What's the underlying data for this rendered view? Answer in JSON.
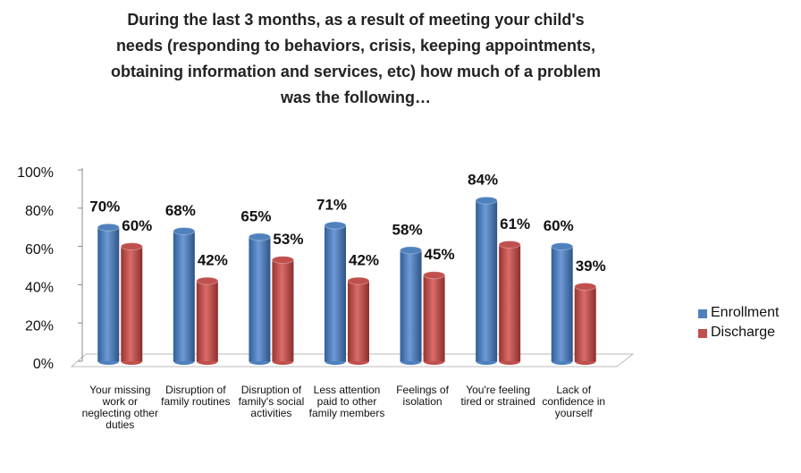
{
  "chart_data": {
    "type": "bar",
    "title": "During the last 3 months, as a result of meeting your child's needs (responding to behaviors, crisis, keeping appointments, obtaining information and services, etc) how much of a problem was the following…",
    "categories": [
      "Your missing work or neglecting other duties",
      "Disruption of family routines",
      "Disruption of family's social activities",
      "Less attention paid to other family members",
      "Feelings of isolation",
      "You're feeling tired or strained",
      "Lack of confidence in yourself"
    ],
    "series": [
      {
        "name": "Enrollment",
        "color": "#4f81bd",
        "values": [
          70,
          68,
          65,
          71,
          58,
          84,
          60
        ],
        "value_labels": [
          "70%",
          "68%",
          "65%",
          "71%",
          "58%",
          "84%",
          "60%"
        ]
      },
      {
        "name": "Discharge",
        "color": "#c0504d",
        "values": [
          60,
          42,
          53,
          42,
          45,
          61,
          39
        ],
        "value_labels": [
          "60%",
          "42%",
          "53%",
          "42%",
          "45%",
          "61%",
          "39%"
        ]
      }
    ],
    "ylim": [
      0,
      100
    ],
    "yticks": [
      {
        "value": 0,
        "label": "0%"
      },
      {
        "value": 20,
        "label": "20%"
      },
      {
        "value": 40,
        "label": "40%"
      },
      {
        "value": 60,
        "label": "60%"
      },
      {
        "value": 80,
        "label": "80%"
      },
      {
        "value": 100,
        "label": "100%"
      }
    ],
    "grid": false,
    "legend": "right"
  }
}
